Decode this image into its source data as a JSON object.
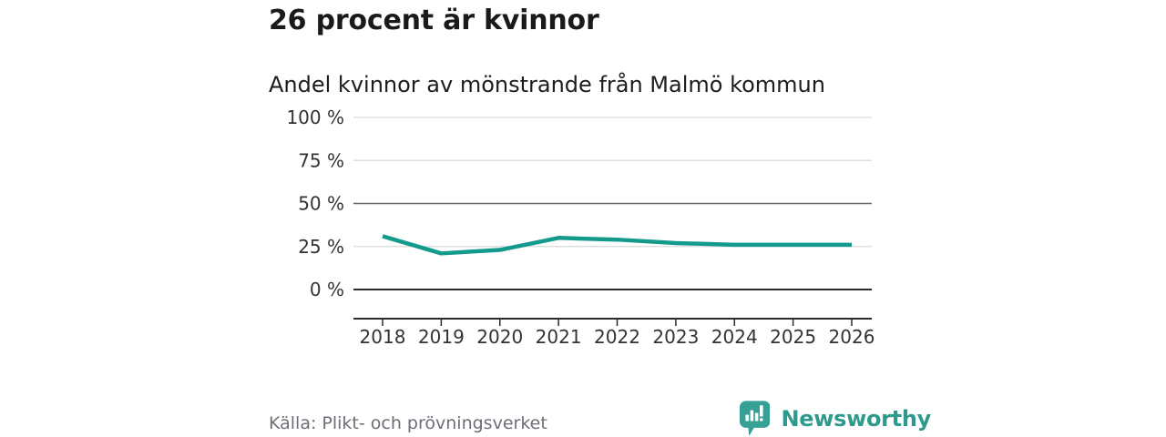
{
  "header": {
    "title": "26 procent är kvinnor",
    "subtitle": "Andel kvinnor av mönstrande från Malmö kommun"
  },
  "chart_data": {
    "type": "line",
    "title": "26 procent är kvinnor",
    "subtitle": "Andel kvinnor av mönstrande från Malmö kommun",
    "categories": [
      "2018",
      "2019",
      "2020",
      "2021",
      "2022",
      "2023",
      "2024",
      "2025",
      "2026"
    ],
    "series": [
      {
        "name": "Andel kvinnor av mönstrande",
        "values": [
          31,
          21,
          23,
          30,
          29,
          27,
          26,
          26,
          26
        ]
      }
    ],
    "unit": "%",
    "ylim": [
      0,
      100
    ],
    "yticks": [
      0,
      25,
      50,
      75,
      100
    ],
    "ytick_labels": [
      "0 %",
      "25 %",
      "50 %",
      "75 %",
      "100 %"
    ],
    "grid": "horizontal",
    "legend": "none"
  },
  "footer": {
    "source": "Källa: Plikt- och prövningsverket",
    "brand": "Newsworthy"
  },
  "icons": {
    "logo": "newsworthy-speech-bubble-bar-chart-icon"
  },
  "colors": {
    "accent_line": "#149a8d",
    "title_text": "#1a1a1a",
    "axis_text": "#333333",
    "grid_light": "#d9d9d9",
    "grid_mid": "#666666",
    "axis_dark": "#2b2b2b",
    "source_text": "#6e6e78",
    "brand_bubble": "#35a093",
    "brand_text": "#2e9a8d"
  }
}
